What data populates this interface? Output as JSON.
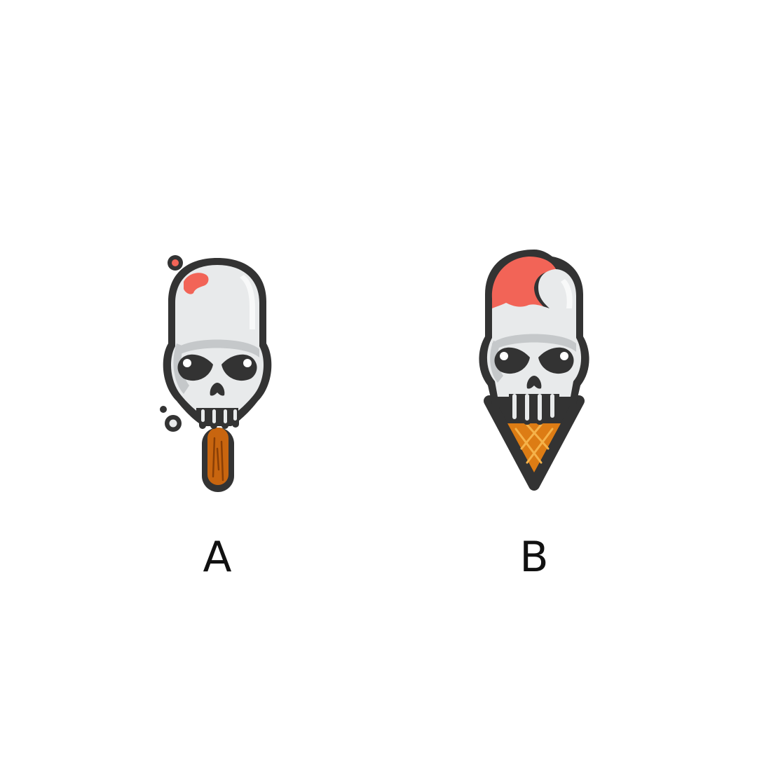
{
  "options": [
    {
      "label": "A",
      "icon": "skull-popsicle-icon"
    },
    {
      "label": "B",
      "icon": "skull-ice-cream-cone-icon"
    }
  ],
  "colors": {
    "outline": "#333333",
    "skull": "#e8eaeb",
    "skull_shade": "#c5c8ca",
    "red": "#f26457",
    "stick": "#c8650f",
    "cone": "#dd7c14"
  }
}
